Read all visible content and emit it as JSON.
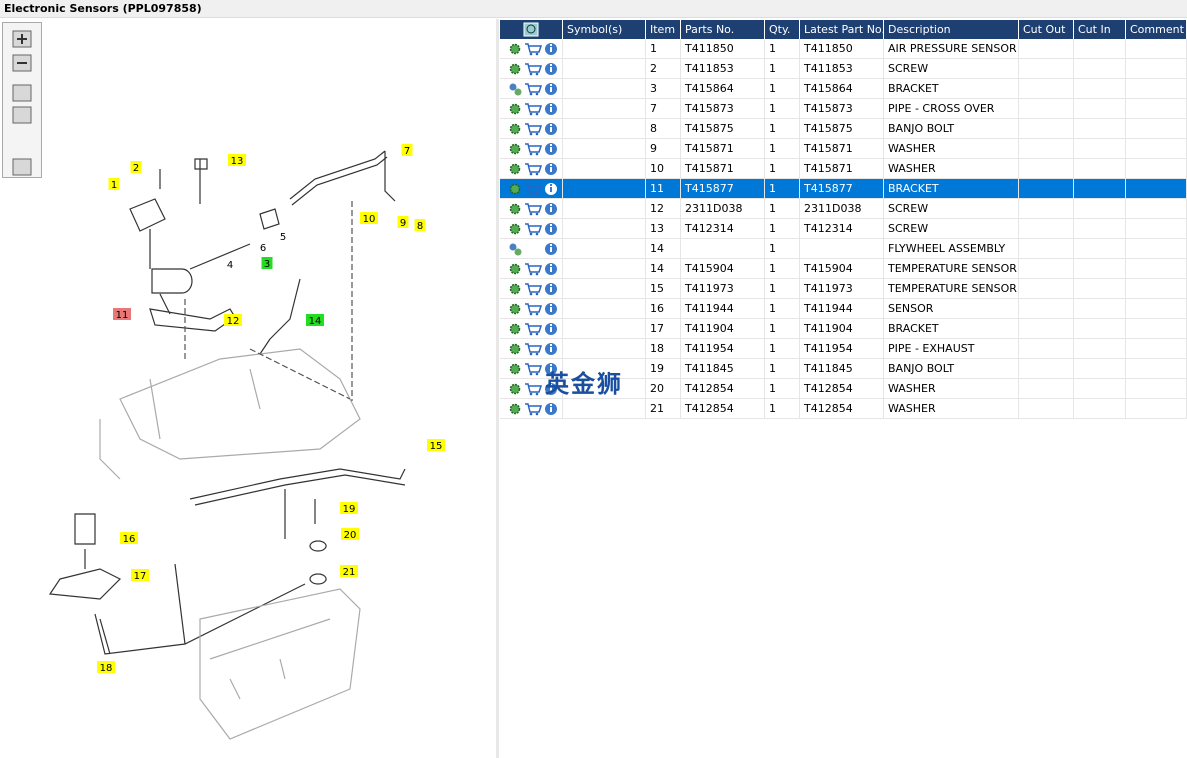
{
  "header": {
    "title": "Electronic Sensors (PPL097858)"
  },
  "diagram": {
    "callouts": [
      {
        "label": "2",
        "color": "#ffff00"
      },
      {
        "label": "13",
        "color": "#ffff00"
      },
      {
        "label": "1",
        "color": "#ffff00"
      },
      {
        "label": "7",
        "color": "#ffff00"
      },
      {
        "label": "10",
        "color": "#ffff00"
      },
      {
        "label": "9",
        "color": "#ffff00"
      },
      {
        "label": "8",
        "color": "#ffff00"
      },
      {
        "label": "5",
        "color": null
      },
      {
        "label": "6",
        "color": null
      },
      {
        "label": "3",
        "color": "#22dd22"
      },
      {
        "label": "4",
        "color": null
      },
      {
        "label": "11",
        "color": "#e87878"
      },
      {
        "label": "12",
        "color": "#ffff00"
      },
      {
        "label": "14",
        "color": "#22dd22"
      },
      {
        "label": "15",
        "color": "#ffff00"
      },
      {
        "label": "19",
        "color": "#ffff00"
      },
      {
        "label": "16",
        "color": "#ffff00"
      },
      {
        "label": "20",
        "color": "#ffff00"
      },
      {
        "label": "17",
        "color": "#ffff00"
      },
      {
        "label": "21",
        "color": "#ffff00"
      },
      {
        "label": "18",
        "color": "#ffff00"
      }
    ]
  },
  "table": {
    "columns": [
      "Symbol(s)",
      "Item",
      "Parts No.",
      "Qty.",
      "Latest Part No.",
      "Description",
      "Cut Out",
      "Cut In",
      "Comment"
    ],
    "selected_row": 7,
    "rows": [
      {
        "item": "1",
        "part_no": "T411850",
        "qty": "1",
        "latest": "T411850",
        "description": "AIR PRESSURE SENSOR"
      },
      {
        "item": "2",
        "part_no": "T411853",
        "qty": "1",
        "latest": "T411853",
        "description": "SCREW"
      },
      {
        "item": "3",
        "part_no": "T415864",
        "qty": "1",
        "latest": "T415864",
        "description": "BRACKET",
        "assembly": true
      },
      {
        "item": "7",
        "part_no": "T415873",
        "qty": "1",
        "latest": "T415873",
        "description": "PIPE - CROSS OVER"
      },
      {
        "item": "8",
        "part_no": "T415875",
        "qty": "1",
        "latest": "T415875",
        "description": "BANJO BOLT"
      },
      {
        "item": "9",
        "part_no": "T415871",
        "qty": "1",
        "latest": "T415871",
        "description": "WASHER"
      },
      {
        "item": "10",
        "part_no": "T415871",
        "qty": "1",
        "latest": "T415871",
        "description": "WASHER"
      },
      {
        "item": "11",
        "part_no": "T415877",
        "qty": "1",
        "latest": "T415877",
        "description": "BRACKET"
      },
      {
        "item": "12",
        "part_no": "2311D038",
        "qty": "1",
        "latest": "2311D038",
        "description": "SCREW"
      },
      {
        "item": "13",
        "part_no": "T412314",
        "qty": "1",
        "latest": "T412314",
        "description": "SCREW"
      },
      {
        "item": "14",
        "qty": "1",
        "description": "FLYWHEEL ASSEMBLY",
        "assembly": true,
        "cart": false
      },
      {
        "item": "14",
        "part_no": "T415904",
        "qty": "1",
        "latest": "T415904",
        "description": "TEMPERATURE SENSOR"
      },
      {
        "item": "15",
        "part_no": "T411973",
        "qty": "1",
        "latest": "T411973",
        "description": "TEMPERATURE SENSOR"
      },
      {
        "item": "16",
        "part_no": "T411944",
        "qty": "1",
        "latest": "T411944",
        "description": "SENSOR"
      },
      {
        "item": "17",
        "part_no": "T411904",
        "qty": "1",
        "latest": "T411904",
        "description": "BRACKET"
      },
      {
        "item": "18",
        "part_no": "T411954",
        "qty": "1",
        "latest": "T411954",
        "description": "PIPE - EXHAUST"
      },
      {
        "item": "19",
        "part_no": "T411845",
        "qty": "1",
        "latest": "T411845",
        "description": "BANJO BOLT"
      },
      {
        "item": "20",
        "part_no": "T412854",
        "qty": "1",
        "latest": "T412854",
        "description": "WASHER"
      },
      {
        "item": "21",
        "part_no": "T412854",
        "qty": "1",
        "latest": "T412854",
        "description": "WASHER"
      }
    ]
  },
  "watermark": "英金狮"
}
